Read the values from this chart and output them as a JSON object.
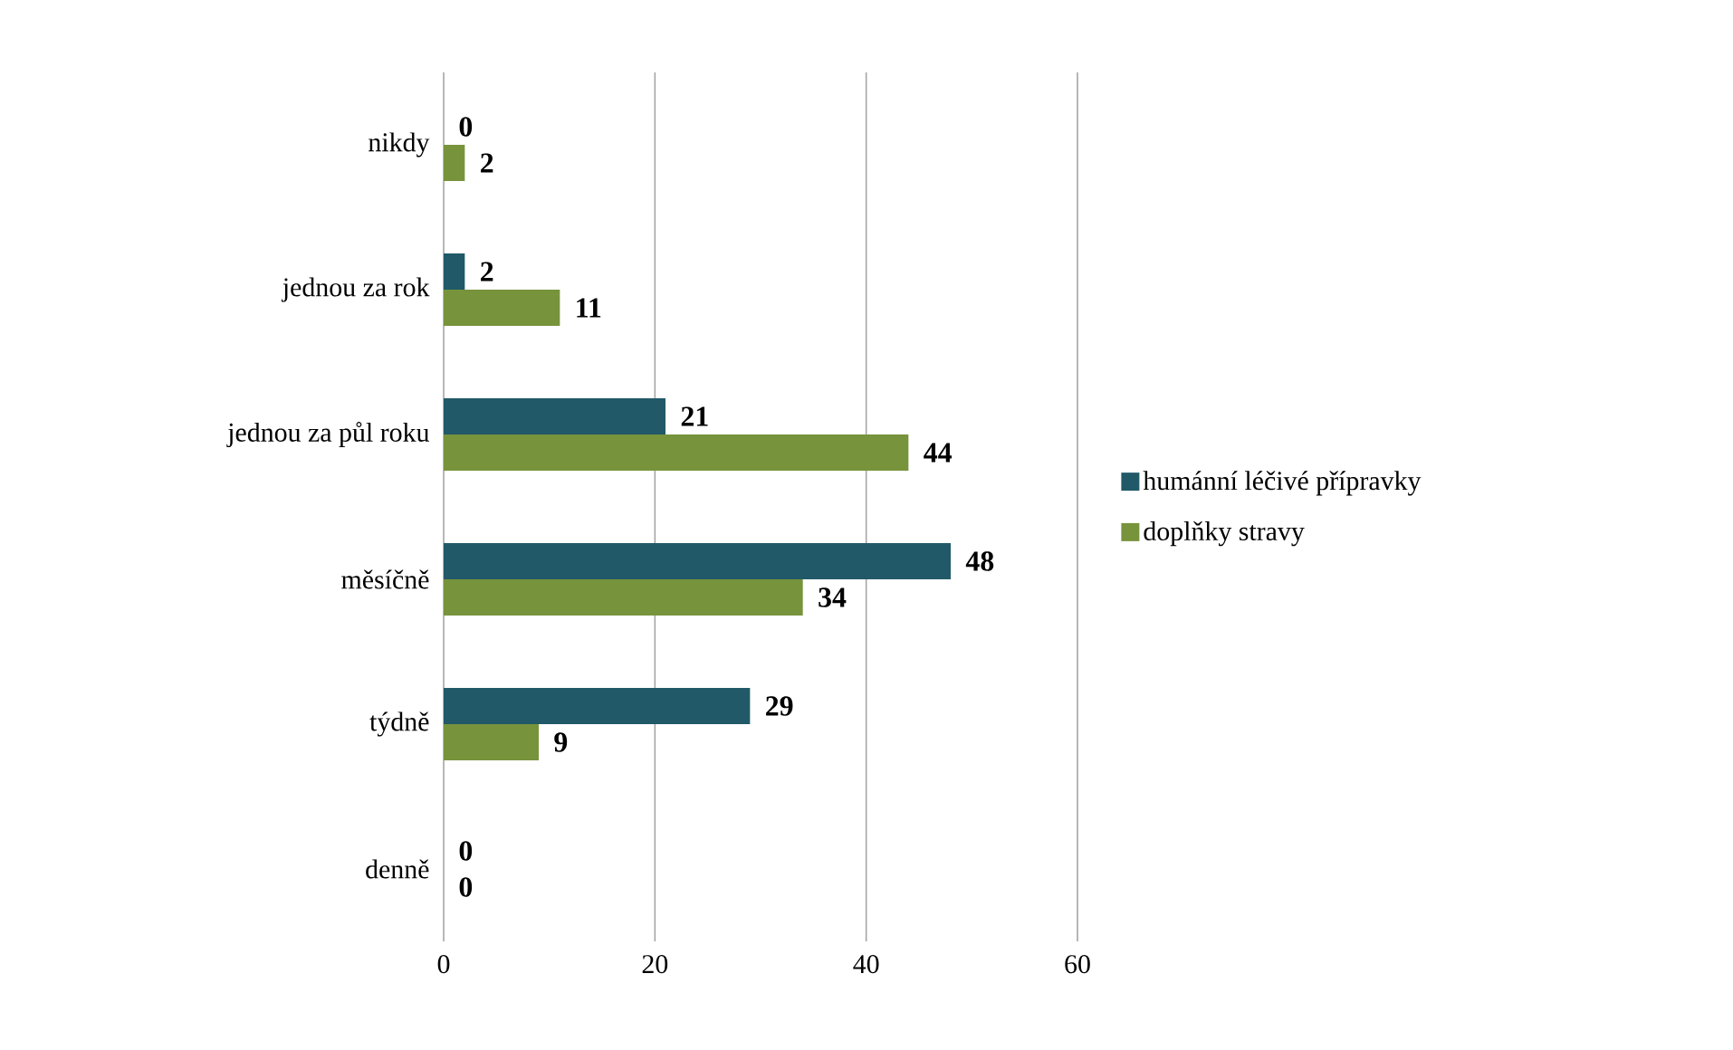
{
  "chart_data": {
    "type": "bar",
    "orientation": "horizontal",
    "categories": [
      "nikdy",
      "jednou za rok",
      "jednou za půl roku",
      "měsíčně",
      "týdně",
      "denně"
    ],
    "series": [
      {
        "name": "humánní léčivé přípravky",
        "color": "#215968",
        "values": [
          0,
          2,
          21,
          48,
          29,
          0
        ]
      },
      {
        "name": "doplňky stravy",
        "color": "#77933c",
        "values": [
          2,
          11,
          44,
          34,
          9,
          0
        ]
      }
    ],
    "xlim": [
      0,
      60
    ],
    "xticks": [
      0,
      20,
      40,
      60
    ],
    "grid": "x",
    "legend": "right",
    "data_labels": true
  }
}
